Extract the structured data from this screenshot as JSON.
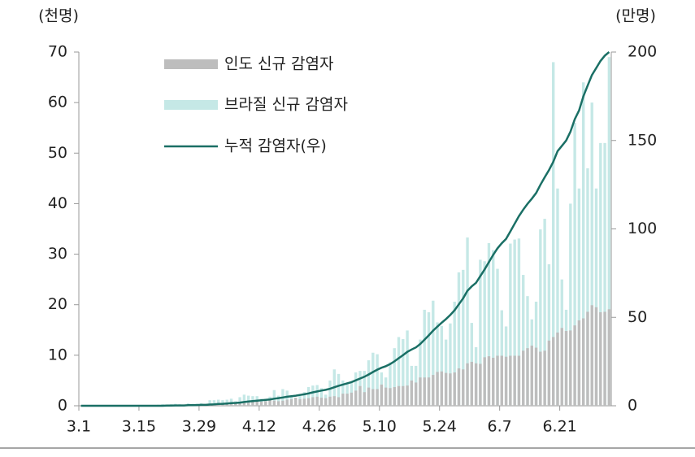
{
  "chart_data": {
    "type": "bar_line",
    "y_unit": "(천명)",
    "y2_unit": "(만명)",
    "categories": [
      "3.1",
      null,
      null,
      null,
      null,
      null,
      null,
      null,
      null,
      null,
      null,
      null,
      null,
      null,
      "3.15",
      null,
      null,
      null,
      null,
      null,
      null,
      null,
      null,
      null,
      null,
      null,
      null,
      null,
      "3.29",
      null,
      null,
      null,
      null,
      null,
      null,
      null,
      null,
      null,
      null,
      null,
      null,
      null,
      "4.12",
      null,
      null,
      null,
      null,
      null,
      null,
      null,
      null,
      null,
      null,
      null,
      null,
      null,
      "4.26",
      null,
      null,
      null,
      null,
      null,
      null,
      null,
      null,
      null,
      null,
      null,
      null,
      null,
      "5.10",
      null,
      null,
      null,
      null,
      null,
      null,
      null,
      null,
      null,
      null,
      null,
      null,
      null,
      "5.24",
      null,
      null,
      null,
      null,
      null,
      null,
      null,
      null,
      null,
      null,
      null,
      null,
      null,
      "6.7",
      null,
      null,
      null,
      null,
      null,
      null,
      null,
      null,
      null,
      null,
      null,
      null,
      null,
      "6.21",
      null,
      null,
      null,
      null,
      null,
      null,
      null,
      null,
      null,
      null,
      null
    ],
    "series": [
      {
        "name": "인도 신규 감염자",
        "color": "#bdbdbd",
        "values": [
          0,
          0,
          0,
          0,
          0,
          0,
          0,
          0,
          0,
          0,
          0,
          0,
          0,
          0,
          0,
          0,
          0,
          0,
          0,
          0,
          0.1,
          0.1,
          0.1,
          0.1,
          0.1,
          0.1,
          0.1,
          0.2,
          0.2,
          0.2,
          0.2,
          0.4,
          0.5,
          0.5,
          0.6,
          0.5,
          0.7,
          0.5,
          0.6,
          0.6,
          0.9,
          0.9,
          0.8,
          0.9,
          1.2,
          1.0,
          0.9,
          1.0,
          1.2,
          1.3,
          1.6,
          1.3,
          1.4,
          1.5,
          1.7,
          1.8,
          1.6,
          1.5,
          1.8,
          1.9,
          1.7,
          2.4,
          2.4,
          2.6,
          3.0,
          3.9,
          2.7,
          3.6,
          3.3,
          3.3,
          4.2,
          3.6,
          3.5,
          3.7,
          3.9,
          3.9,
          4.0,
          5.0,
          4.6,
          5.6,
          5.6,
          5.6,
          6.1,
          6.7,
          6.8,
          6.5,
          6.4,
          6.6,
          7.4,
          7.2,
          8.4,
          8.7,
          8.4,
          8.3,
          9.6,
          9.8,
          9.5,
          9.9,
          9.9,
          9.7,
          9.9,
          9.9,
          9.9,
          10.9,
          11.4,
          11.9,
          11.5,
          10.7,
          10.9,
          12.9,
          13.6,
          14.5,
          15.4,
          14.8,
          14.9,
          15.9,
          16.9,
          17.3,
          18.6,
          19.9,
          19.5,
          18.5,
          18.6,
          19.1
        ]
      },
      {
        "name": "브라질 신규 감염자",
        "color": "#c5e8e6",
        "values": [
          0,
          0,
          0,
          0,
          0,
          0,
          0,
          0,
          0,
          0,
          0,
          0,
          0.1,
          0,
          0,
          0.1,
          0.1,
          0.1,
          0.2,
          0.3,
          0.2,
          0.3,
          0.4,
          0.3,
          0.2,
          0.5,
          0.4,
          0.4,
          0.5,
          0.3,
          1.1,
          1.1,
          1.2,
          1.1,
          1.2,
          1.4,
          0.9,
          1.7,
          2.2,
          2.0,
          1.9,
          1.9,
          1.4,
          1.3,
          1.8,
          3.1,
          2.0,
          3.3,
          3.0,
          1.9,
          1.4,
          2.3,
          2.7,
          3.7,
          4.0,
          4.1,
          3.5,
          2.2,
          5.0,
          7.2,
          6.3,
          5.0,
          4.6,
          4.5,
          6.6,
          6.9,
          6.9,
          9.0,
          10.5,
          10.2,
          6.6,
          5.6,
          8.6,
          11.4,
          13.6,
          13.2,
          14.9,
          7.9,
          7.9,
          13.1,
          19.0,
          18.5,
          20.8,
          16.5,
          15.8,
          13.1,
          16.3,
          20.6,
          26.4,
          26.9,
          33.3,
          16.4,
          11.6,
          28.9,
          28.6,
          32.2,
          30.8,
          27.1,
          18.9,
          15.7,
          32.1,
          32.9,
          33.1,
          25.9,
          21.7,
          17.1,
          20.6,
          34.9,
          37.0,
          28.0,
          68.0,
          43.0,
          25.0,
          19.0,
          40.0,
          56.0,
          43.0,
          64.0,
          47.0,
          60.0,
          43.0,
          52.0,
          52.0,
          69.0
        ]
      },
      {
        "name": "누적 감염자(우)",
        "color": "#1a6f65",
        "axis": "y2",
        "values": [
          0,
          0,
          0,
          0,
          0,
          0,
          0,
          0,
          0,
          0,
          0,
          0,
          0,
          0,
          0,
          0,
          0,
          0,
          0,
          0,
          0.1,
          0.1,
          0.2,
          0.2,
          0.2,
          0.3,
          0.3,
          0.4,
          0.5,
          0.5,
          0.7,
          0.8,
          1.0,
          1.1,
          1.3,
          1.5,
          1.6,
          1.8,
          2.1,
          2.4,
          2.6,
          2.9,
          3.1,
          3.3,
          3.6,
          4.0,
          4.3,
          4.7,
          5.1,
          5.4,
          5.7,
          6.1,
          6.5,
          7.0,
          7.6,
          8.1,
          8.6,
          9.0,
          9.6,
          10.5,
          11.3,
          12.0,
          12.7,
          13.4,
          14.4,
          15.4,
          16.4,
          17.7,
          19.1,
          20.4,
          21.5,
          22.4,
          23.6,
          25.1,
          26.9,
          28.6,
          30.5,
          31.8,
          33.0,
          34.9,
          37.4,
          39.8,
          42.5,
          44.8,
          47.0,
          49.0,
          51.3,
          54.0,
          57.4,
          60.8,
          65.0,
          67.5,
          69.5,
          73.3,
          77.1,
          81.3,
          85.3,
          89.0,
          91.9,
          94.4,
          98.6,
          102.9,
          107.2,
          110.9,
          114.2,
          117.1,
          120.3,
          124.9,
          129.2,
          133.3,
          138,
          144,
          147,
          150,
          155,
          162,
          167,
          175,
          181,
          187,
          191,
          195,
          198,
          200
        ]
      }
    ],
    "ylim": [
      0,
      70
    ],
    "yticks": [
      0,
      10,
      20,
      30,
      40,
      50,
      60,
      70
    ],
    "y2lim": [
      0,
      200
    ],
    "y2ticks": [
      0,
      50,
      100,
      150,
      200
    ]
  }
}
